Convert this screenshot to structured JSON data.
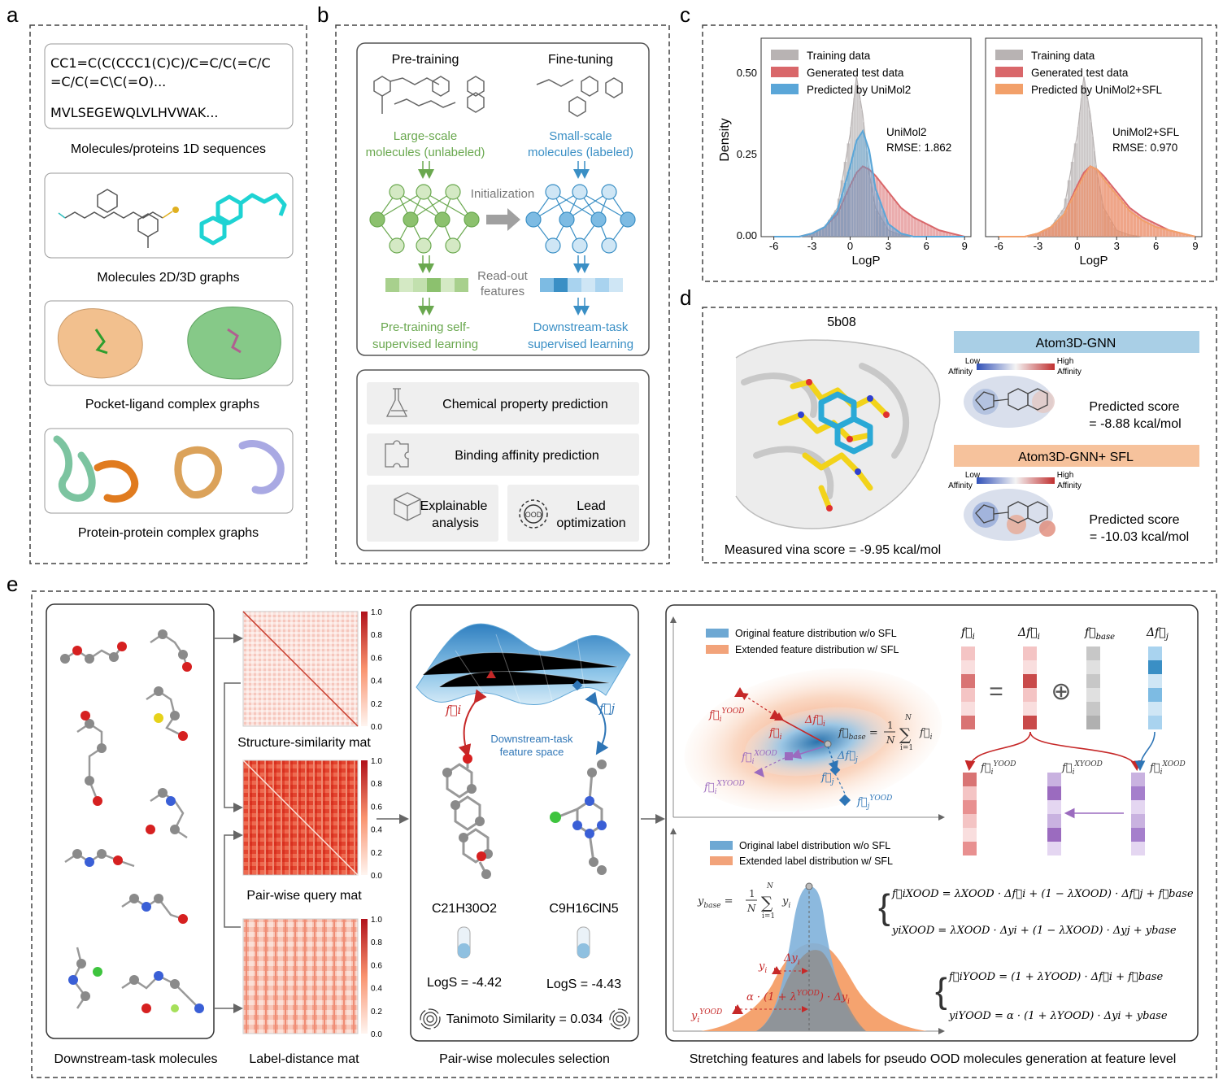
{
  "panel_letters": {
    "a": "a",
    "b": "b",
    "c": "c",
    "d": "d",
    "e": "e"
  },
  "panel_a": {
    "seq_smiles_1": "CC1=C(C(CCC1(C)C)/C=C/C(=C/C",
    "seq_smiles_2": "=C/C(=C\\C(=O)...",
    "seq_protein": "MVLSEGEWQLVLHVWAK...",
    "caption_1d": "Molecules/proteins 1D sequences",
    "caption_graph": "Molecules 2D/3D graphs",
    "caption_pocket": "Pocket-ligand  complex graphs",
    "caption_ppi": "Protein-protein  complex graphs"
  },
  "panel_b": {
    "pretraining": "Pre-training",
    "finetuning": "Fine-tuning",
    "large_1": "Large-scale",
    "large_2": "molecules (unlabeled)",
    "small_1": "Small-scale",
    "small_2": "molecules (labeled)",
    "initialization": "Initialization",
    "readout_1": "Read-out",
    "readout_2": "features",
    "pre_ssl_1": "Pre-training self-",
    "pre_ssl_2": "supervised learning",
    "down_1": "Downstream-task",
    "down_2": "supervised learning",
    "task_chem": "Chemical property prediction",
    "task_bind": "Binding affinity prediction",
    "task_explain_1": "Explainable",
    "task_explain_2": "analysis",
    "task_lead_1": "Lead",
    "task_lead_2": "optimization",
    "colors": {
      "green": "#6aa84f",
      "blue": "#3a8fc5"
    }
  },
  "panel_c": {
    "ylabel": "Density",
    "xlabel": "LogP",
    "yticks": [
      "0.50",
      "0.25",
      "0.00"
    ],
    "xticks": [
      "-6",
      "-3",
      "0",
      "3",
      "6",
      "9"
    ],
    "left_legend": [
      "Training data",
      "Generated test data",
      "Predicted by UniMol2"
    ],
    "left_model": "UniMol2",
    "left_rmse": "RMSE: 1.862",
    "right_legend": [
      "Training data",
      "Generated test data",
      "Predicted by UniMol2+SFL"
    ],
    "right_model": "UniMol2+SFL",
    "right_rmse": "RMSE: 0.970",
    "colors": {
      "train": "#b8b3b3",
      "test": "#d9676a",
      "pred_left": "#5aa6d8",
      "pred_right": "#f2a06a"
    }
  },
  "chart_data": [
    {
      "type": "area",
      "title": "",
      "xlabel": "LogP",
      "ylabel": "Density",
      "xlim": [
        -7,
        9.5
      ],
      "ylim": [
        0,
        0.62
      ],
      "x": [
        -6,
        -5,
        -4,
        -3,
        -2,
        -1,
        0,
        0.5,
        1,
        1.5,
        2,
        3,
        4,
        5,
        6,
        7,
        8,
        9
      ],
      "series": [
        {
          "name": "Training data",
          "values": [
            0,
            0,
            0,
            0.01,
            0.03,
            0.09,
            0.32,
            0.5,
            0.38,
            0.2,
            0.09,
            0.02,
            0.005,
            0,
            0,
            0,
            0,
            0
          ]
        },
        {
          "name": "Generated test data",
          "values": [
            0,
            0,
            0,
            0.01,
            0.03,
            0.07,
            0.16,
            0.2,
            0.22,
            0.21,
            0.19,
            0.14,
            0.09,
            0.06,
            0.04,
            0.02,
            0.01,
            0
          ]
        },
        {
          "name": "Predicted by UniMol2",
          "values": [
            0,
            0,
            0,
            0.01,
            0.03,
            0.08,
            0.22,
            0.3,
            0.33,
            0.27,
            0.15,
            0.04,
            0.01,
            0,
            0,
            0,
            0,
            0
          ]
        }
      ],
      "annotation": [
        "UniMol2",
        "RMSE: 1.862"
      ]
    },
    {
      "type": "area",
      "title": "",
      "xlabel": "LogP",
      "ylabel": "",
      "xlim": [
        -7,
        9.5
      ],
      "ylim": [
        0,
        0.62
      ],
      "x": [
        -6,
        -5,
        -4,
        -3,
        -2,
        -1,
        0,
        0.5,
        1,
        1.5,
        2,
        3,
        4,
        5,
        6,
        7,
        8,
        9
      ],
      "series": [
        {
          "name": "Training data",
          "values": [
            0,
            0,
            0,
            0.01,
            0.03,
            0.09,
            0.32,
            0.5,
            0.38,
            0.2,
            0.09,
            0.02,
            0.005,
            0,
            0,
            0,
            0,
            0
          ]
        },
        {
          "name": "Generated test data",
          "values": [
            0,
            0,
            0,
            0.01,
            0.03,
            0.07,
            0.16,
            0.2,
            0.22,
            0.21,
            0.19,
            0.14,
            0.09,
            0.06,
            0.04,
            0.02,
            0.01,
            0
          ]
        },
        {
          "name": "Predicted by UniMol2+SFL",
          "values": [
            0,
            0,
            0,
            0.01,
            0.03,
            0.07,
            0.15,
            0.19,
            0.22,
            0.21,
            0.18,
            0.13,
            0.08,
            0.05,
            0.03,
            0.02,
            0.01,
            0
          ]
        }
      ],
      "annotation": [
        "UniMol2+SFL",
        "RMSE: 0.970"
      ]
    }
  ],
  "panel_d": {
    "pdb": "5b08",
    "measured": "Measured vina score = -9.95 kcal/mol",
    "model1": "Atom3D-GNN",
    "model2": "Atom3D-GNN+ SFL",
    "low": "Low",
    "high": "High",
    "affinity": "Affinity",
    "pred_label": "Predicted score",
    "score1": "= -8.88 kcal/mol",
    "score2": "= -10.03 kcal/mol",
    "colors": {
      "model1_bg": "#a9cfe6",
      "model2_bg": "#f6c29c"
    }
  },
  "panel_e": {
    "cap_mols": "Downstream-task molecules",
    "cap_struct": "Structure-similarity mat",
    "cap_query": "Pair-wise query mat",
    "cap_label": "Label-distance mat",
    "cap_select": "Pair-wise molecules selection",
    "cap_stretch": "Stretching features and labels for pseudo OOD molecules generation at feature level",
    "cbar_ticks": [
      "1.0",
      "0.8",
      "0.6",
      "0.4",
      "0.2",
      "0.0"
    ],
    "feature_space_1": "Downstream-task",
    "feature_space_2": "feature space",
    "fi": "f⃗i",
    "fj": "f⃗j",
    "formula_1": "C21H30O2",
    "formula_2": "C9H16ClN5",
    "logs_1": "LogS = -4.42",
    "logs_2": "LogS = -4.43",
    "tanimoto": "Tanimoto Similarity = 0.034",
    "legend_feat_orig": "Original feature distribution w/o SFL",
    "legend_feat_ext": "Extended feature distribution w/ SFL",
    "legend_label_orig": "Original label distribution w/o SFL",
    "legend_label_ext": "Extended label distribution w/ SFL",
    "eq_fxood": "f⃗iXOOD = λXOOD · Δf⃗i + (1 − λXOOD) · Δf⃗j + f⃗base",
    "eq_yxood": "yiXOOD = λXOOD · Δyi + (1 − λXOOD) · Δyj + ybase",
    "eq_fyood": "f⃗iYOOD =      (1 + λYOOD) · Δf⃗i + f⃗base",
    "eq_yyood": "yiYOOD =  α · (1 + λYOOD) · Δyi + ybase",
    "colors": {
      "red": "#c62828",
      "blue": "#2e75b6",
      "purple": "#9b6bbf",
      "orange": "#f2a06a"
    }
  }
}
